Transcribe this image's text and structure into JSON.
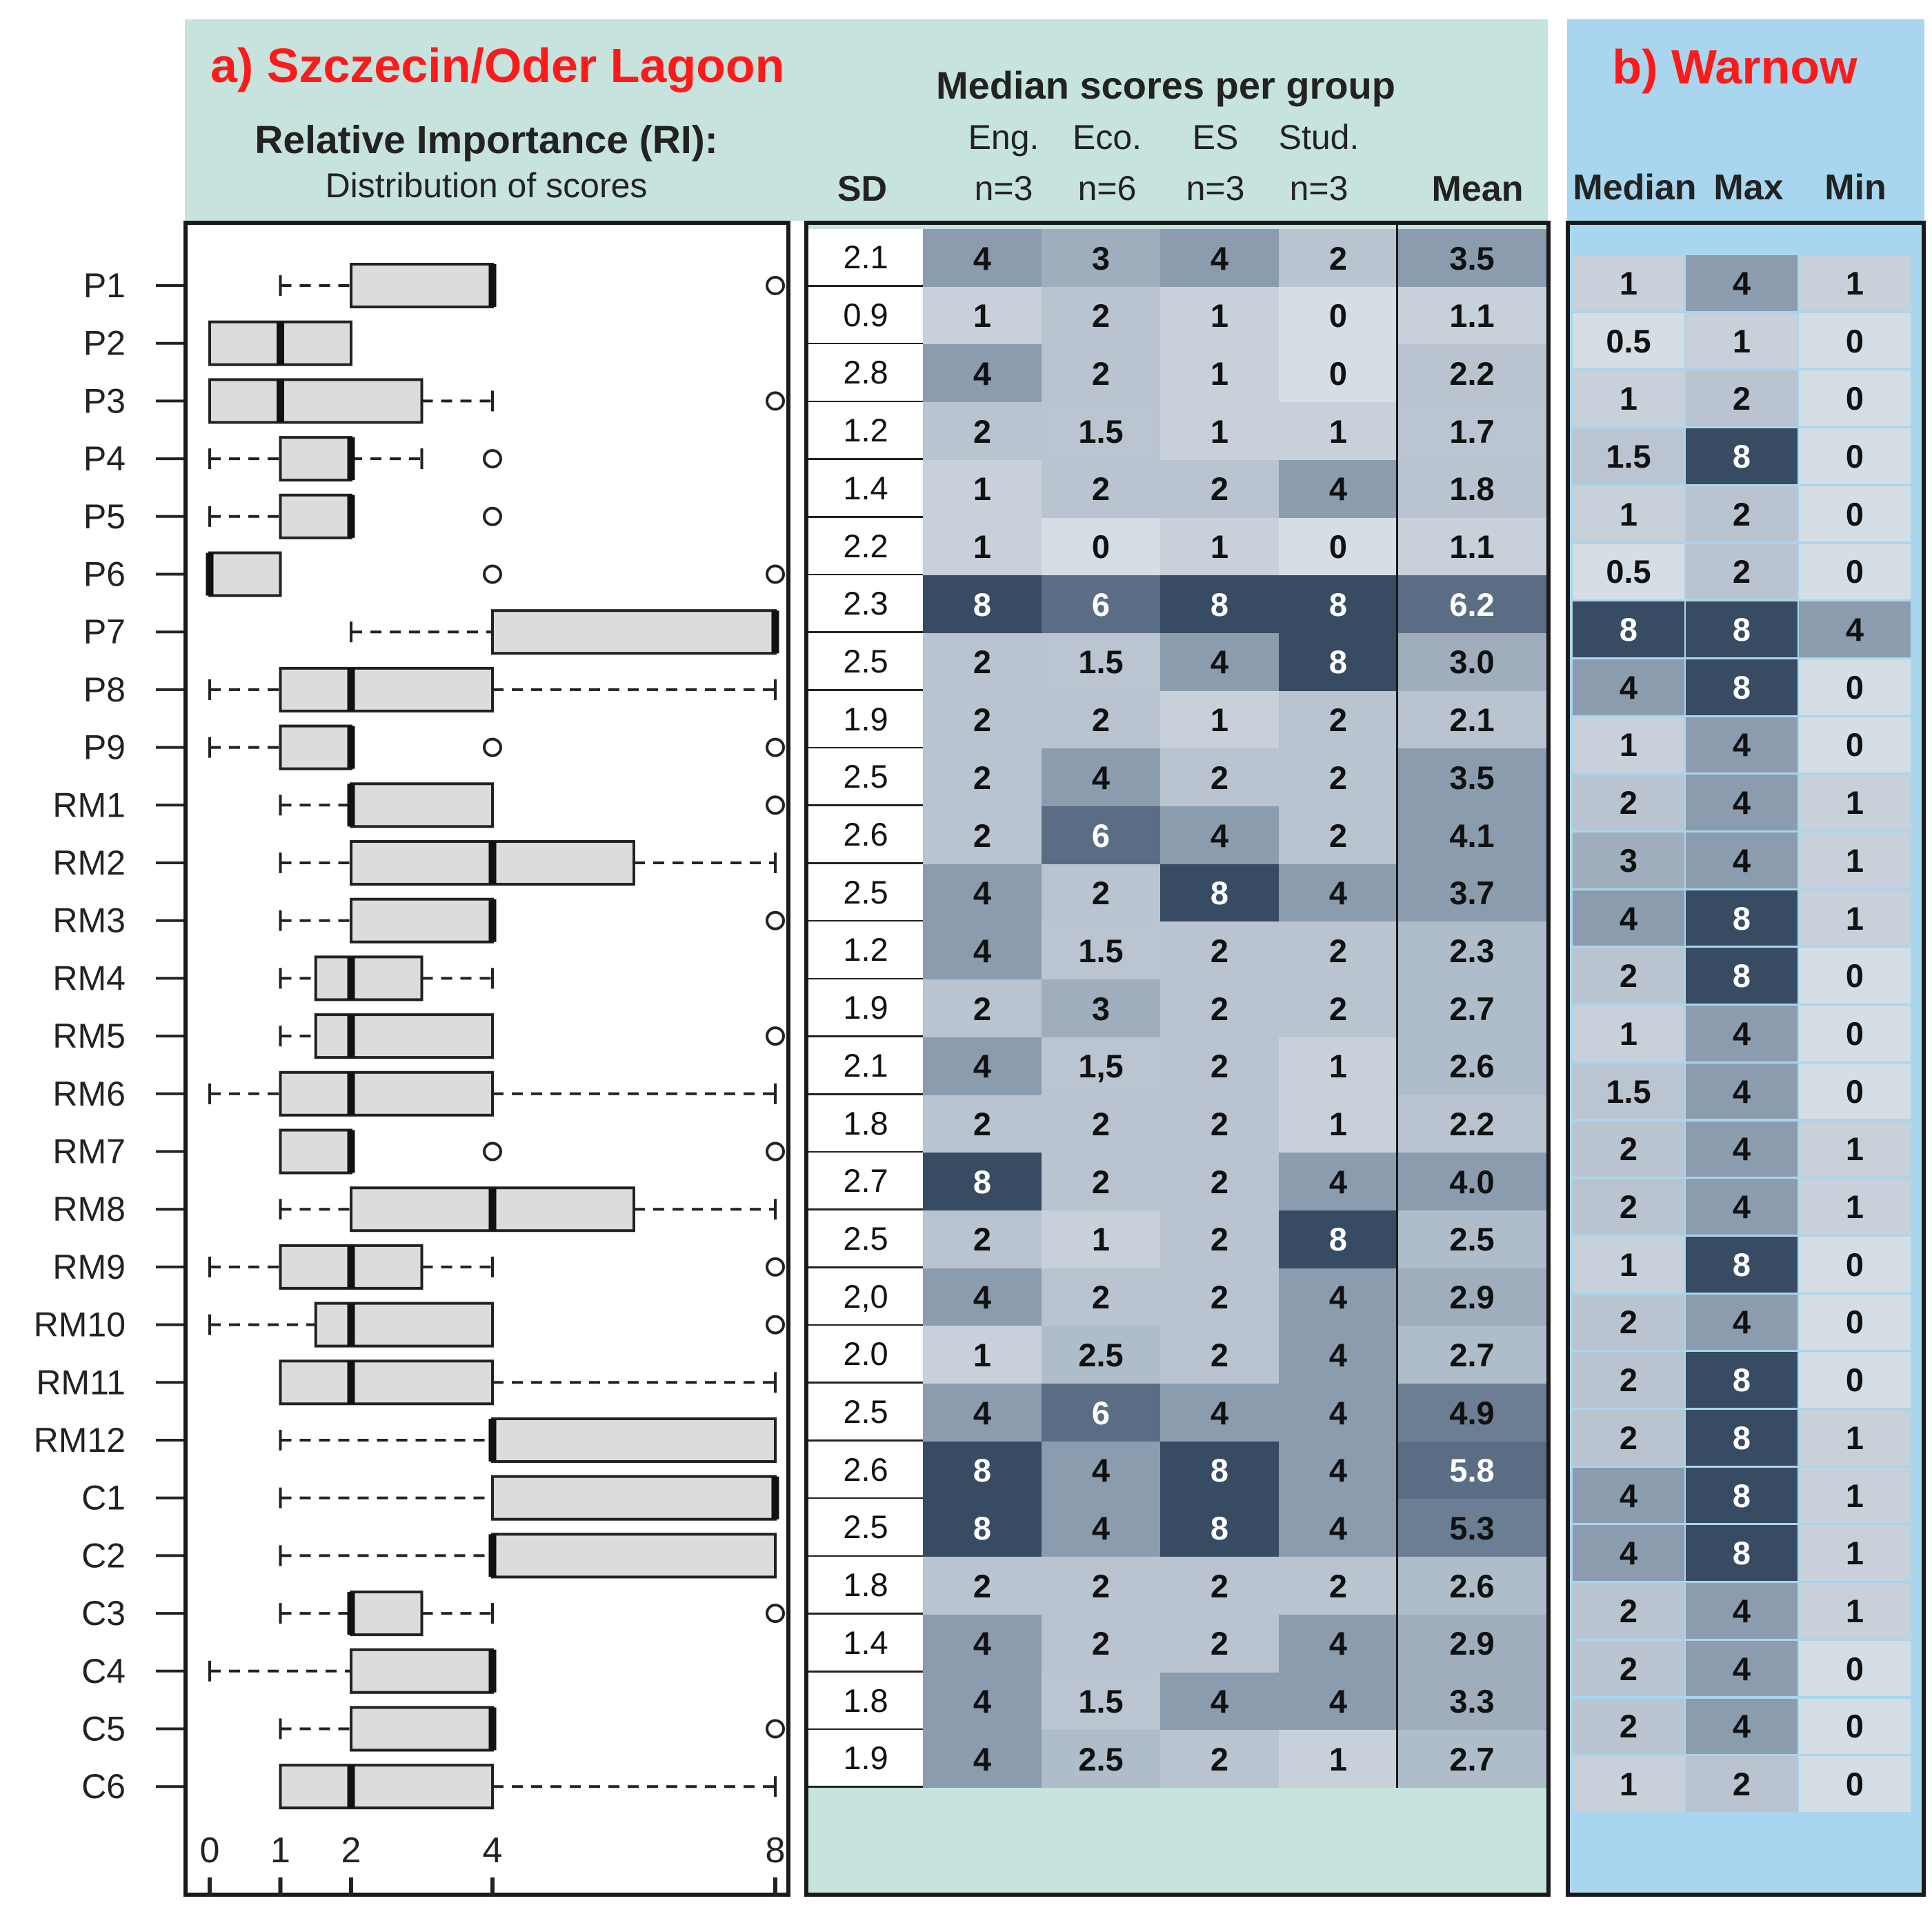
{
  "panel_a": {
    "title": "a) Szczecin/Oder Lagoon",
    "ri_title": "Relative Importance (RI):",
    "ri_subtitle": "Distribution of scores"
  },
  "table_a": {
    "title": "Median scores per group",
    "sd_header": "SD",
    "mean_header": "Mean",
    "groups": [
      {
        "name": "Eng.",
        "n": "n=3"
      },
      {
        "name": "Eco.",
        "n": "n=6"
      },
      {
        "name": "ES",
        "n": "n=3"
      },
      {
        "name": "Stud.",
        "n": "n=3"
      }
    ]
  },
  "panel_b": {
    "title": "b) Warnow",
    "headers": [
      "Median",
      "Max",
      "Min"
    ]
  },
  "colors": {
    "header_bg_a": "#c7e3de",
    "header_bg_b": "#a8d6ee",
    "box_fill": "#dcdcdc",
    "text_dark": "#111111",
    "title_red": "#ff1a1a"
  },
  "chart_data": {
    "type": "boxplot",
    "xlabel": "Relative Importance (RI)",
    "ticks": [
      0,
      1,
      2,
      4,
      8
    ],
    "rows": [
      {
        "label": "P1",
        "lw": 1,
        "q1": 2,
        "med": 4,
        "q3": 4,
        "uw": 4,
        "out": [
          8
        ],
        "sd": "2.1",
        "eng": "4",
        "eco": "3",
        "es": "4",
        "stud": "2",
        "mean": "3.5",
        "w_median": "1",
        "w_max": "4",
        "w_min": "1"
      },
      {
        "label": "P2",
        "lw": 0,
        "q1": 0,
        "med": 1,
        "q3": 2,
        "uw": 2,
        "out": [],
        "sd": "0.9",
        "eng": "1",
        "eco": "2",
        "es": "1",
        "stud": "0",
        "mean": "1.1",
        "w_median": "0.5",
        "w_max": "1",
        "w_min": "0"
      },
      {
        "label": "P3",
        "lw": 0,
        "q1": 0,
        "med": 1,
        "q3": 3,
        "uw": 4,
        "out": [
          8
        ],
        "sd": "2.8",
        "eng": "4",
        "eco": "2",
        "es": "1",
        "stud": "0",
        "mean": "2.2",
        "w_median": "1",
        "w_max": "2",
        "w_min": "0"
      },
      {
        "label": "P4",
        "lw": 0,
        "q1": 1,
        "med": 2,
        "q3": 2,
        "uw": 3,
        "out": [
          4
        ],
        "sd": "1.2",
        "eng": "2",
        "eco": "1.5",
        "es": "1",
        "stud": "1",
        "mean": "1.7",
        "w_median": "1.5",
        "w_max": "8",
        "w_min": "0"
      },
      {
        "label": "P5",
        "lw": 0,
        "q1": 1,
        "med": 2,
        "q3": 2,
        "uw": 2,
        "out": [
          4
        ],
        "sd": "1.4",
        "eng": "1",
        "eco": "2",
        "es": "2",
        "stud": "4",
        "mean": "1.8",
        "w_median": "1",
        "w_max": "2",
        "w_min": "0"
      },
      {
        "label": "P6",
        "lw": 0,
        "q1": 0,
        "med": 0,
        "q3": 1,
        "uw": 1,
        "out": [
          4,
          8
        ],
        "sd": "2.2",
        "eng": "1",
        "eco": "0",
        "es": "1",
        "stud": "0",
        "mean": "1.1",
        "w_median": "0.5",
        "w_max": "2",
        "w_min": "0"
      },
      {
        "label": "P7",
        "lw": 2,
        "q1": 4,
        "med": 8,
        "q3": 8,
        "uw": 8,
        "out": [],
        "sd": "2.3",
        "eng": "8",
        "eco": "6",
        "es": "8",
        "stud": "8",
        "mean": "6.2",
        "w_median": "8",
        "w_max": "8",
        "w_min": "4"
      },
      {
        "label": "P8",
        "lw": 0,
        "q1": 1,
        "med": 2,
        "q3": 4,
        "uw": 8,
        "out": [],
        "sd": "2.5",
        "eng": "2",
        "eco": "1.5",
        "es": "4",
        "stud": "8",
        "mean": "3.0",
        "w_median": "4",
        "w_max": "8",
        "w_min": "0"
      },
      {
        "label": "P9",
        "lw": 0,
        "q1": 1,
        "med": 2,
        "q3": 2,
        "uw": 2,
        "out": [
          4,
          8
        ],
        "sd": "1.9",
        "eng": "2",
        "eco": "2",
        "es": "1",
        "stud": "2",
        "mean": "2.1",
        "w_median": "1",
        "w_max": "4",
        "w_min": "0"
      },
      {
        "label": "RM1",
        "lw": 1,
        "q1": 2,
        "med": 2,
        "q3": 4,
        "uw": 4,
        "out": [
          8
        ],
        "sd": "2.5",
        "eng": "2",
        "eco": "4",
        "es": "2",
        "stud": "2",
        "mean": "3.5",
        "w_median": "2",
        "w_max": "4",
        "w_min": "1"
      },
      {
        "label": "RM2",
        "lw": 1,
        "q1": 2,
        "med": 4,
        "q3": 6,
        "uw": 8,
        "out": [],
        "sd": "2.6",
        "eng": "2",
        "eco": "6",
        "es": "4",
        "stud": "2",
        "mean": "4.1",
        "w_median": "3",
        "w_max": "4",
        "w_min": "1"
      },
      {
        "label": "RM3",
        "lw": 1,
        "q1": 2,
        "med": 4,
        "q3": 4,
        "uw": 4,
        "out": [
          8
        ],
        "sd": "2.5",
        "eng": "4",
        "eco": "2",
        "es": "8",
        "stud": "4",
        "mean": "3.7",
        "w_median": "4",
        "w_max": "8",
        "w_min": "1"
      },
      {
        "label": "RM4",
        "lw": 1,
        "q1": 1.5,
        "med": 2,
        "q3": 3,
        "uw": 4,
        "out": [],
        "sd": "1.2",
        "eng": "4",
        "eco": "1.5",
        "es": "2",
        "stud": "2",
        "mean": "2.3",
        "w_median": "2",
        "w_max": "8",
        "w_min": "0"
      },
      {
        "label": "RM5",
        "lw": 1,
        "q1": 1.5,
        "med": 2,
        "q3": 4,
        "uw": 4,
        "out": [
          8
        ],
        "sd": "1.9",
        "eng": "2",
        "eco": "3",
        "es": "2",
        "stud": "2",
        "mean": "2.7",
        "w_median": "1",
        "w_max": "4",
        "w_min": "0"
      },
      {
        "label": "RM6",
        "lw": 0,
        "q1": 1,
        "med": 2,
        "q3": 4,
        "uw": 8,
        "out": [],
        "sd": "2.1",
        "eng": "4",
        "eco": "1,5",
        "es": "2",
        "stud": "1",
        "mean": "2.6",
        "w_median": "1.5",
        "w_max": "4",
        "w_min": "0"
      },
      {
        "label": "RM7",
        "lw": 1,
        "q1": 1,
        "med": 2,
        "q3": 2,
        "uw": 2,
        "out": [
          4,
          8
        ],
        "sd": "1.8",
        "eng": "2",
        "eco": "2",
        "es": "2",
        "stud": "1",
        "mean": "2.2",
        "w_median": "2",
        "w_max": "4",
        "w_min": "1"
      },
      {
        "label": "RM8",
        "lw": 1,
        "q1": 2,
        "med": 4,
        "q3": 6,
        "uw": 8,
        "out": [],
        "sd": "2.7",
        "eng": "8",
        "eco": "2",
        "es": "2",
        "stud": "4",
        "mean": "4.0",
        "w_median": "2",
        "w_max": "4",
        "w_min": "1"
      },
      {
        "label": "RM9",
        "lw": 0,
        "q1": 1,
        "med": 2,
        "q3": 3,
        "uw": 4,
        "out": [
          8
        ],
        "sd": "2.5",
        "eng": "2",
        "eco": "1",
        "es": "2",
        "stud": "8",
        "mean": "2.5",
        "w_median": "1",
        "w_max": "8",
        "w_min": "0"
      },
      {
        "label": "RM10",
        "lw": 0,
        "q1": 1.5,
        "med": 2,
        "q3": 4,
        "uw": 4,
        "out": [
          8
        ],
        "sd": "2,0",
        "eng": "4",
        "eco": "2",
        "es": "2",
        "stud": "4",
        "mean": "2.9",
        "w_median": "2",
        "w_max": "4",
        "w_min": "0"
      },
      {
        "label": "RM11",
        "lw": 1,
        "q1": 1,
        "med": 2,
        "q3": 4,
        "uw": 8,
        "out": [],
        "sd": "2.0",
        "eng": "1",
        "eco": "2.5",
        "es": "2",
        "stud": "4",
        "mean": "2.7",
        "w_median": "2",
        "w_max": "8",
        "w_min": "0"
      },
      {
        "label": "RM12",
        "lw": 1,
        "q1": 4,
        "med": 4,
        "q3": 8,
        "uw": 8,
        "out": [],
        "sd": "2.5",
        "eng": "4",
        "eco": "6",
        "es": "4",
        "stud": "4",
        "mean": "4.9",
        "w_median": "2",
        "w_max": "8",
        "w_min": "1"
      },
      {
        "label": "C1",
        "lw": 1,
        "q1": 4,
        "med": 8,
        "q3": 8,
        "uw": 8,
        "out": [],
        "sd": "2.6",
        "eng": "8",
        "eco": "4",
        "es": "8",
        "stud": "4",
        "mean": "5.8",
        "w_median": "4",
        "w_max": "8",
        "w_min": "1"
      },
      {
        "label": "C2",
        "lw": 1,
        "q1": 4,
        "med": 4,
        "q3": 8,
        "uw": 8,
        "out": [],
        "sd": "2.5",
        "eng": "8",
        "eco": "4",
        "es": "8",
        "stud": "4",
        "mean": "5.3",
        "w_median": "4",
        "w_max": "8",
        "w_min": "1"
      },
      {
        "label": "C3",
        "lw": 1,
        "q1": 2,
        "med": 2,
        "q3": 3,
        "uw": 4,
        "out": [
          8
        ],
        "sd": "1.8",
        "eng": "2",
        "eco": "2",
        "es": "2",
        "stud": "2",
        "mean": "2.6",
        "w_median": "2",
        "w_max": "4",
        "w_min": "1"
      },
      {
        "label": "C4",
        "lw": 0,
        "q1": 2,
        "med": 4,
        "q3": 4,
        "uw": 4,
        "out": [],
        "sd": "1.4",
        "eng": "4",
        "eco": "2",
        "es": "2",
        "stud": "4",
        "mean": "2.9",
        "w_median": "2",
        "w_max": "4",
        "w_min": "0"
      },
      {
        "label": "C5",
        "lw": 1,
        "q1": 2,
        "med": 4,
        "q3": 4,
        "uw": 4,
        "out": [
          8
        ],
        "sd": "1.8",
        "eng": "4",
        "eco": "1.5",
        "es": "4",
        "stud": "4",
        "mean": "3.3",
        "w_median": "2",
        "w_max": "4",
        "w_min": "0"
      },
      {
        "label": "C6",
        "lw": 1,
        "q1": 1,
        "med": 2,
        "q3": 4,
        "uw": 8,
        "out": [],
        "sd": "1.9",
        "eng": "4",
        "eco": "2.5",
        "es": "2",
        "stud": "1",
        "mean": "2.7",
        "w_median": "1",
        "w_max": "2",
        "w_min": "0"
      }
    ]
  }
}
